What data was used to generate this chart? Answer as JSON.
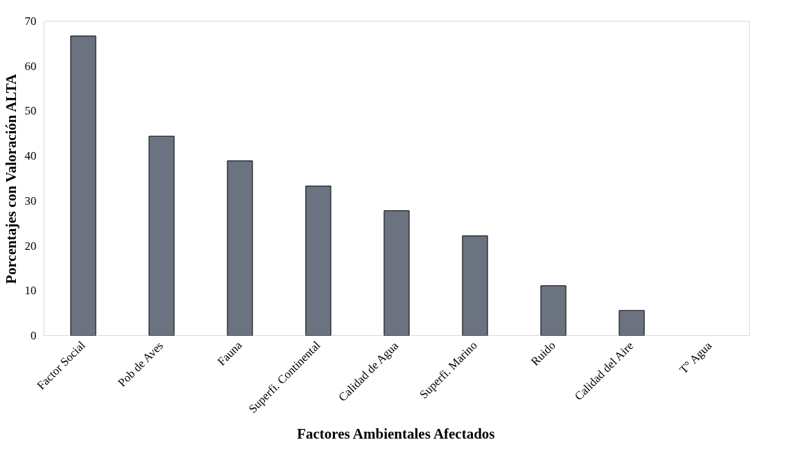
{
  "chart_data": {
    "type": "bar",
    "xlabel": "Factores Ambientales Afectados",
    "ylabel": "Porcentajes con Valoración ALTA",
    "categories": [
      "Factor Social",
      "Pob de Aves",
      "Fauna",
      "Superfi. Continental",
      "Calidad de Agua",
      "Superfi. Marino",
      "Ruido",
      "Calidad del Aire",
      "T° Agua"
    ],
    "values": [
      66.7,
      44.4,
      38.9,
      33.3,
      27.8,
      22.2,
      11.1,
      5.6,
      0
    ],
    "color": "#6b7280",
    "ylim": [
      0,
      70
    ],
    "yticks": [
      0,
      10,
      20,
      30,
      40,
      50,
      60,
      70
    ],
    "grid": false
  }
}
